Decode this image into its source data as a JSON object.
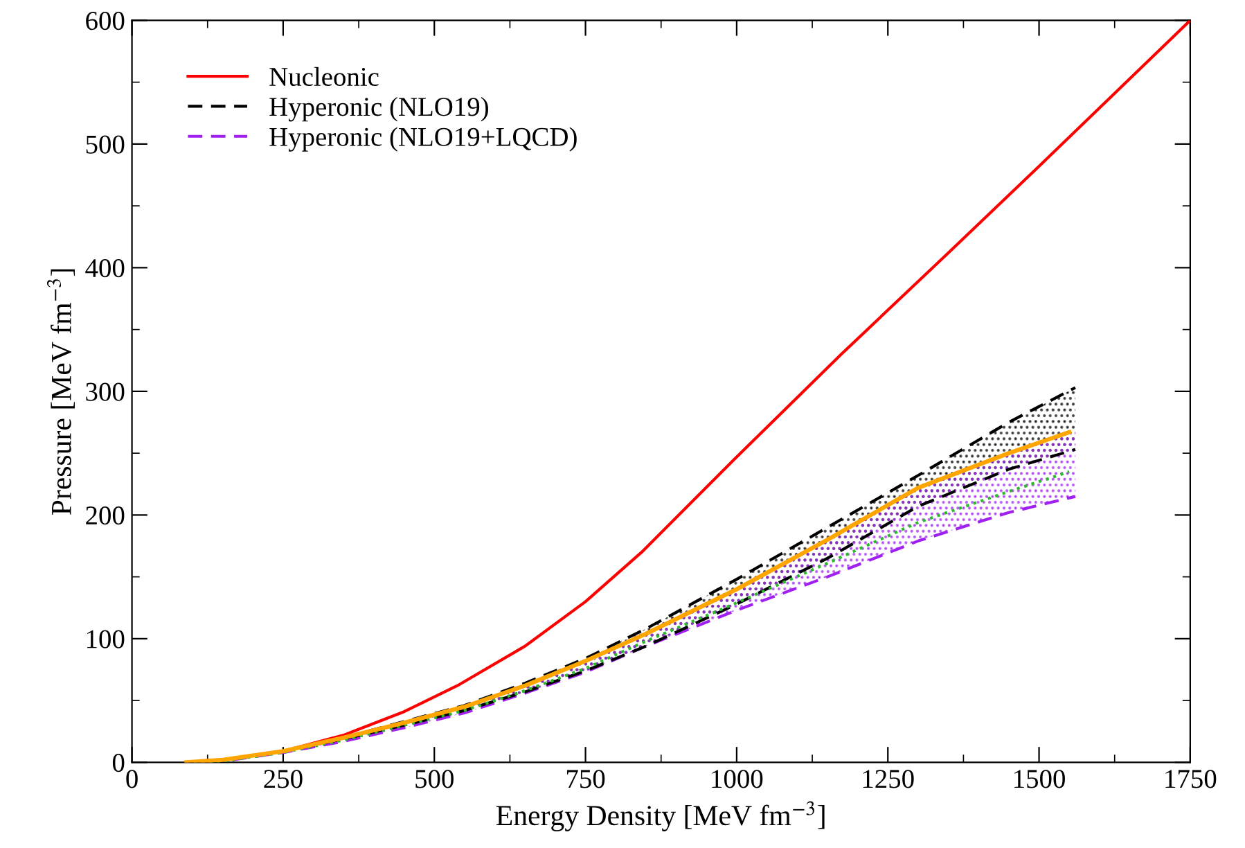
{
  "chart_data": {
    "type": "line",
    "xlabel": "Energy Density [MeV fm$^{−3}$]",
    "ylabel": "Pressure [MeV fm$^{−3}$]",
    "xlim": [
      0,
      1750
    ],
    "ylim": [
      0,
      600
    ],
    "xticks": [
      0,
      250,
      500,
      750,
      1000,
      1250,
      1500,
      1750
    ],
    "yticks": [
      0,
      100,
      200,
      300,
      400,
      500,
      600
    ],
    "grid": false,
    "legend": "top left",
    "series": [
      {
        "name": "Nucleonic",
        "color": "#ff0000",
        "line_style": "solid",
        "x": [
          90,
          150,
          250,
          350,
          450,
          538,
          650,
          750,
          843,
          996,
          1173,
          1350,
          1500,
          1750
        ],
        "values": [
          0,
          2,
          9,
          22,
          41,
          62,
          94,
          130,
          170,
          245,
          330,
          412,
          482,
          600
        ]
      },
      {
        "name": "Hyperonic (NLO19)",
        "color": "#000000",
        "line_style": "dashed",
        "x": [
          90,
          150,
          250,
          350,
          450,
          550,
          650,
          750,
          850,
          1000,
          1150,
          1300,
          1450,
          1560
        ],
        "values": [
          0,
          2,
          9,
          20,
          33,
          46,
          64,
          84,
          108,
          148,
          190,
          232,
          275,
          303
        ],
        "lower": [
          0,
          2,
          9,
          19,
          30,
          42,
          57,
          74,
          94,
          128,
          165,
          207,
          237,
          253
        ],
        "upper": [
          0,
          2,
          9,
          20,
          33,
          46,
          64,
          84,
          108,
          148,
          190,
          232,
          275,
          303
        ]
      },
      {
        "color": "#000000",
        "line_style": "dashed",
        "x": [
          90,
          150,
          250,
          350,
          450,
          550,
          650,
          750,
          850,
          1000,
          1150,
          1300,
          1450,
          1560
        ],
        "values": [
          0,
          2,
          9,
          19,
          30,
          42,
          57,
          74,
          94,
          128,
          165,
          207,
          237,
          253
        ]
      },
      {
        "name": "Hyperonic (NLO19+LQCD)",
        "color": "#a020f0",
        "line_style": "dashed",
        "x": [
          90,
          150,
          250,
          350,
          450,
          550,
          650,
          750,
          850,
          1000,
          1150,
          1300,
          1450,
          1560
        ],
        "values": [
          0,
          1,
          8,
          17,
          28,
          40,
          56,
          73,
          94,
          123,
          150,
          179,
          202,
          215
        ],
        "lower": [
          0,
          1,
          8,
          17,
          28,
          40,
          56,
          73,
          94,
          123,
          150,
          179,
          202,
          215
        ],
        "upper": [
          0,
          2,
          9,
          20,
          32,
          45,
          62,
          82,
          104,
          140,
          180,
          222,
          250,
          268
        ]
      },
      {
        "color": "#2eb82e",
        "line_style": "dotted",
        "x": [
          90,
          150,
          250,
          350,
          450,
          550,
          650,
          750,
          850,
          1000,
          1150,
          1300,
          1450,
          1550
        ],
        "values": [
          0,
          1,
          8,
          18,
          30,
          42,
          58,
          76,
          98,
          129,
          161,
          194,
          219,
          235
        ]
      },
      {
        "color": "#ffa500",
        "line_style": "solid",
        "x": [
          90,
          150,
          250,
          350,
          450,
          550,
          650,
          750,
          850,
          1000,
          1150,
          1300,
          1450,
          1550
        ],
        "values": [
          0,
          2,
          9,
          20,
          32,
          45,
          62,
          82,
          104,
          140,
          180,
          222,
          250,
          267
        ]
      }
    ]
  }
}
